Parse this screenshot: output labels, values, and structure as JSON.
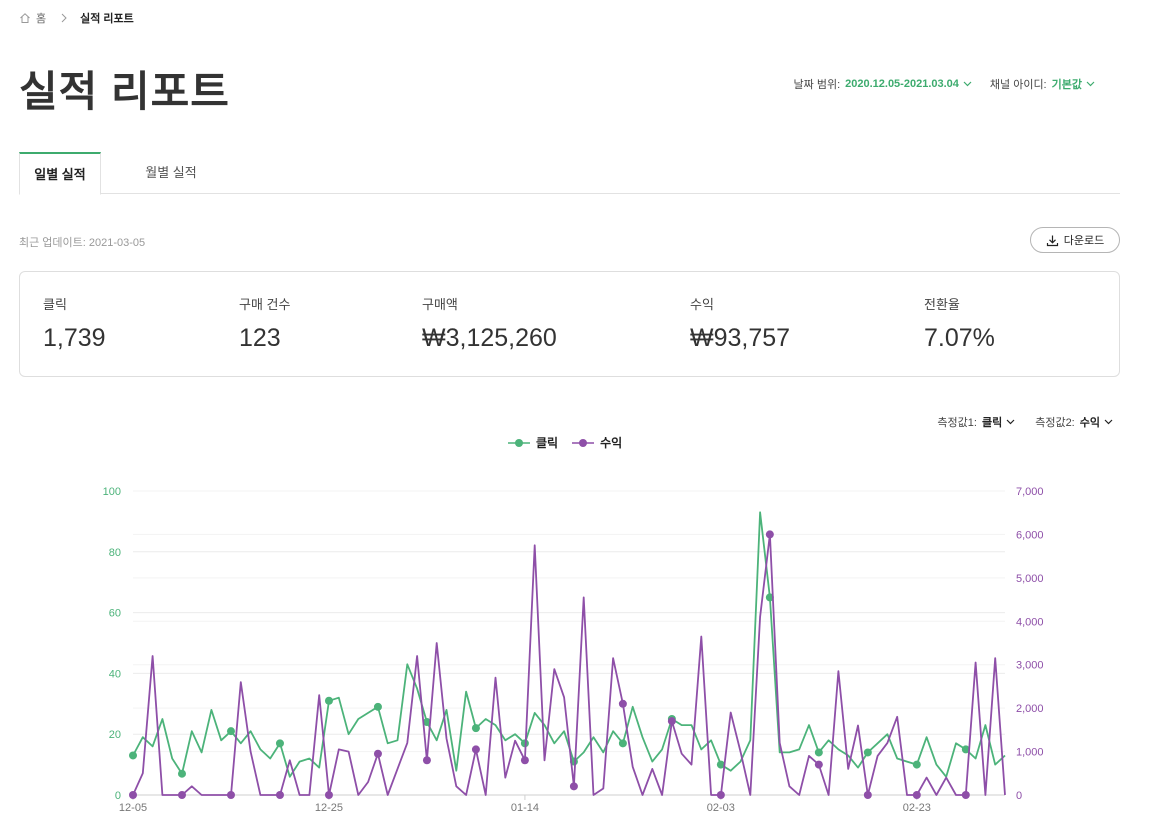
{
  "breadcrumb": {
    "home": "홈",
    "current": "실적 리포트"
  },
  "page_title": "실적 리포트",
  "filters": {
    "date_range_label": "날짜 범위:",
    "date_range_value": "2020.12.05-2021.03.04",
    "channel_label": "채널 아이디:",
    "channel_value": "기본값"
  },
  "tabs": [
    {
      "label": "일별 실적"
    },
    {
      "label": "월별 실적"
    }
  ],
  "last_updated": "최근 업데이트: 2021-03-05",
  "download_label": "다운로드",
  "kpis": [
    {
      "label": "클릭",
      "value": "1,739"
    },
    {
      "label": "구매 건수",
      "value": "123"
    },
    {
      "label": "구매액",
      "value": "₩3,125,260"
    },
    {
      "label": "수익",
      "value": "₩93,757"
    },
    {
      "label": "전환율",
      "value": "7.07%"
    }
  ],
  "metric_selects": [
    {
      "label": "측정값1:",
      "value": "클릭"
    },
    {
      "label": "측정값2:",
      "value": "수익"
    }
  ],
  "colors": {
    "green": "#4cb37a",
    "purple": "#8e4fa8",
    "accent": "#3dab6e"
  },
  "chart_data": {
    "type": "line",
    "x_start": "2020-12-05",
    "x_end": "2021-03-04",
    "x_tick_labels": [
      "12-05",
      "12-25",
      "01-14",
      "02-03",
      "02-23"
    ],
    "y_left": {
      "min": 0,
      "max": 100,
      "ticks": [
        0,
        20,
        40,
        60,
        80,
        100
      ]
    },
    "y_right": {
      "min": 0,
      "max": 7000,
      "ticks": [
        "0",
        "1,000",
        "2,000",
        "3,000",
        "4,000",
        "5,000",
        "6,000",
        "7,000"
      ]
    },
    "grid": true,
    "legend_position": "top-center",
    "series": [
      {
        "name": "클릭",
        "axis": "left",
        "color": "#4cb37a",
        "values": [
          13,
          19,
          16,
          25,
          12,
          7,
          21,
          14,
          28,
          18,
          21,
          17,
          21,
          15,
          12,
          17,
          6,
          11,
          12,
          9,
          31,
          32,
          20,
          25,
          27,
          29,
          17,
          18,
          43,
          35,
          24,
          18,
          28,
          8,
          34,
          22,
          25,
          23,
          18,
          20,
          17,
          27,
          23,
          17,
          21,
          11,
          14,
          19,
          14,
          21,
          17,
          29,
          19,
          11,
          15,
          25,
          23,
          23,
          15,
          18,
          10,
          8,
          11,
          18,
          93,
          65,
          14,
          14,
          15,
          23,
          14,
          18,
          15,
          13,
          9,
          14,
          17,
          20,
          12,
          11,
          10,
          19,
          10,
          6,
          17,
          15,
          12,
          23,
          10,
          13
        ]
      },
      {
        "name": "수익",
        "axis": "right",
        "color": "#8e4fa8",
        "values": [
          0,
          500,
          3200,
          0,
          0,
          0,
          200,
          0,
          0,
          0,
          0,
          2600,
          1000,
          0,
          0,
          0,
          800,
          0,
          0,
          2300,
          0,
          1050,
          1000,
          0,
          300,
          950,
          0,
          600,
          1200,
          3200,
          800,
          3500,
          1300,
          200,
          0,
          1050,
          0,
          2700,
          400,
          1250,
          800,
          5750,
          800,
          2900,
          2250,
          200,
          4550,
          0,
          150,
          3150,
          2100,
          650,
          0,
          600,
          0,
          1700,
          950,
          700,
          3650,
          0,
          0,
          1900,
          1000,
          0,
          4100,
          6000,
          1200,
          200,
          0,
          900,
          700,
          0,
          2850,
          600,
          1600,
          0,
          900,
          1200,
          1800,
          0,
          0,
          400,
          0,
          400,
          0,
          0,
          3050,
          0,
          3150,
          0
        ]
      }
    ]
  }
}
